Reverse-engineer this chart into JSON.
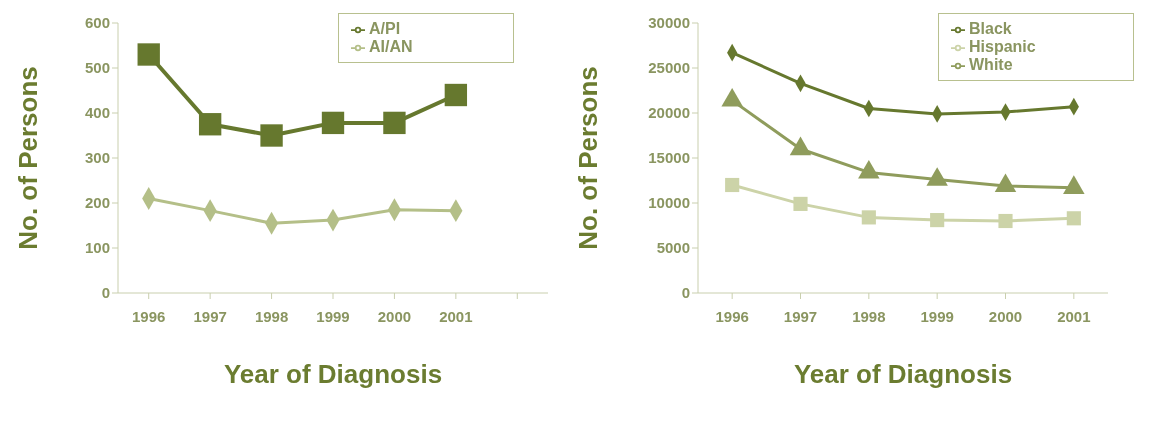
{
  "chart_data": [
    {
      "type": "line",
      "xlabel": "Year of Diagnosis",
      "ylabel": "No. of Persons",
      "categories": [
        "1996",
        "1997",
        "1998",
        "1999",
        "2000",
        "2001",
        null
      ],
      "series": [
        {
          "name": "A/PI",
          "color": "#66782e",
          "marker": "square",
          "values": [
            530,
            375,
            350,
            378,
            378,
            440,
            null
          ]
        },
        {
          "name": "AI/AN",
          "color": "#b4bf88",
          "marker": "diamond",
          "values": [
            210,
            183,
            155,
            162,
            185,
            183,
            null
          ]
        }
      ],
      "ylim": [
        0,
        600
      ],
      "yticks": [
        0,
        100,
        200,
        300,
        400,
        500,
        600
      ],
      "grid": false,
      "legend": "top right"
    },
    {
      "type": "line",
      "xlabel": "Year of Diagnosis",
      "ylabel": "No. of Persons",
      "categories": [
        "1996",
        "1997",
        "1998",
        "1999",
        "2000",
        "2001"
      ],
      "series": [
        {
          "name": "Black",
          "color": "#66782e",
          "marker": "diamond",
          "values": [
            26700,
            23300,
            20500,
            19900,
            20100,
            20700
          ]
        },
        {
          "name": "Hispanic",
          "color": "#ccd3a8",
          "marker": "square",
          "values": [
            12000,
            9900,
            8400,
            8100,
            8000,
            8300
          ]
        },
        {
          "name": "White",
          "color": "#8f9c5c",
          "marker": "triangle",
          "values": [
            21400,
            16000,
            13400,
            12600,
            11900,
            11700
          ]
        }
      ],
      "ylim": [
        0,
        30000
      ],
      "yticks": [
        0,
        5000,
        10000,
        15000,
        20000,
        25000,
        30000
      ],
      "grid": false,
      "legend": "top right"
    }
  ]
}
